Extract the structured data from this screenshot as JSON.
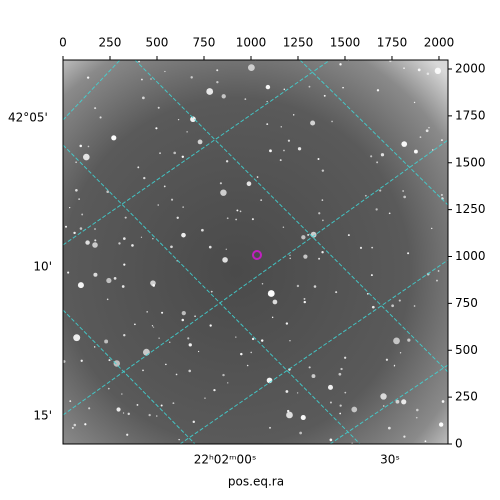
{
  "chart_data": {
    "type": "image",
    "x_label": "pos.eq.ra",
    "xlim": [
      0,
      2048
    ],
    "xticks": [
      0,
      250,
      500,
      750,
      1000,
      1250,
      1500,
      1750,
      2000
    ],
    "ylim": [
      0,
      2048
    ],
    "yticks": [
      0,
      250,
      500,
      750,
      1000,
      1250,
      1500,
      1750,
      2000
    ],
    "wcs_y_labels": [
      "42°05'",
      "10'",
      "15'"
    ],
    "wcs_x_labels": [
      "22ʰ02ᵐ00ˢ",
      "30ˢ"
    ]
  }
}
